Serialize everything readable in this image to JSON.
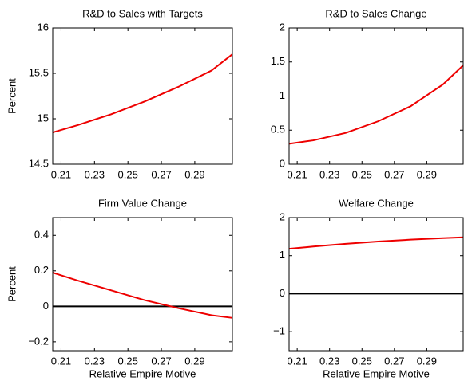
{
  "chart_data": [
    {
      "type": "line",
      "title": "R&D to Sales with Targets",
      "ylabel": "Percent",
      "x": [
        0.205,
        0.22,
        0.24,
        0.26,
        0.28,
        0.3,
        0.3125
      ],
      "values": [
        14.85,
        14.93,
        15.05,
        15.19,
        15.35,
        15.53,
        15.71
      ],
      "color": "#ee0000",
      "xlim": [
        0.205,
        0.3125
      ],
      "xticks": [
        0.21,
        0.23,
        0.25,
        0.27,
        0.29
      ],
      "ylim": [
        14.5,
        16
      ],
      "yticks": [
        14.5,
        15,
        15.5,
        16
      ]
    },
    {
      "type": "line",
      "title": "R&D to Sales Change",
      "x": [
        0.205,
        0.22,
        0.24,
        0.26,
        0.28,
        0.3,
        0.3125
      ],
      "values": [
        0.3,
        0.35,
        0.46,
        0.63,
        0.85,
        1.17,
        1.45
      ],
      "color": "#ee0000",
      "xlim": [
        0.205,
        0.3125
      ],
      "xticks": [
        0.21,
        0.23,
        0.25,
        0.27,
        0.29
      ],
      "ylim": [
        0,
        2
      ],
      "yticks": [
        0,
        0.5,
        1,
        1.5,
        2
      ]
    },
    {
      "type": "line",
      "title": "Firm Value Change",
      "ylabel": "Percent",
      "xlabel": "Relative Empire Motive",
      "x": [
        0.205,
        0.22,
        0.24,
        0.26,
        0.28,
        0.3,
        0.3125
      ],
      "values": [
        0.19,
        0.145,
        0.09,
        0.035,
        -0.01,
        -0.05,
        -0.065
      ],
      "color": "#ee0000",
      "reference_line": 0,
      "xlim": [
        0.205,
        0.3125
      ],
      "xticks": [
        0.21,
        0.23,
        0.25,
        0.27,
        0.29
      ],
      "ylim": [
        -0.25,
        0.5
      ],
      "yticks": [
        {
          "value": -0.2,
          "label": "−0.2"
        },
        0,
        0.2,
        0.4
      ]
    },
    {
      "type": "line",
      "title": "Welfare Change",
      "xlabel": "Relative Empire Motive",
      "x": [
        0.205,
        0.22,
        0.24,
        0.26,
        0.28,
        0.3,
        0.3125
      ],
      "values": [
        1.18,
        1.24,
        1.31,
        1.37,
        1.42,
        1.46,
        1.48
      ],
      "color": "#ee0000",
      "reference_line": 0,
      "xlim": [
        0.205,
        0.3125
      ],
      "xticks": [
        0.21,
        0.23,
        0.25,
        0.27,
        0.29
      ],
      "ylim": [
        -1.5,
        2
      ],
      "yticks": [
        {
          "value": -1,
          "label": "−1"
        },
        0,
        1,
        2
      ]
    }
  ]
}
